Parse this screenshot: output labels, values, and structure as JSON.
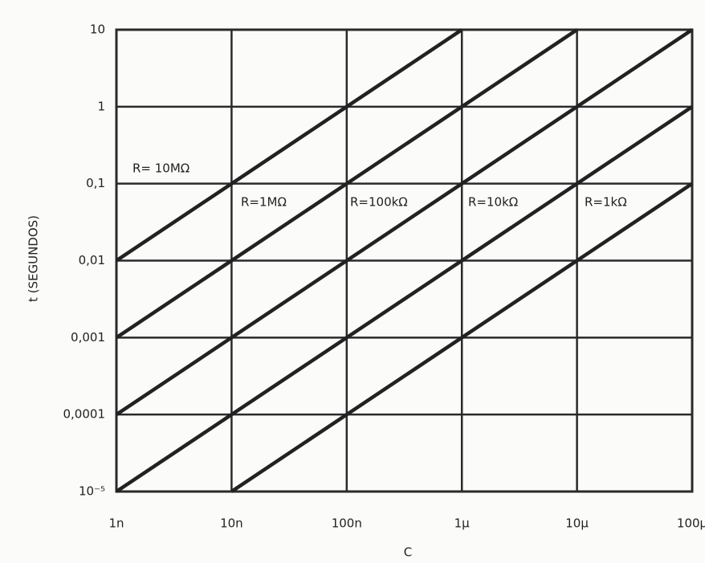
{
  "chart_data": {
    "type": "line",
    "xlabel": "C",
    "ylabel": "t (SEGUNDOS)",
    "xlog": true,
    "ylog": true,
    "grid": true,
    "xlim": [
      1e-09,
      0.0001
    ],
    "ylim": [
      1e-05,
      10
    ],
    "xticks": [
      {
        "value": 1e-09,
        "label": "1n"
      },
      {
        "value": 1e-08,
        "label": "10n"
      },
      {
        "value": 1e-07,
        "label": "100n"
      },
      {
        "value": 1e-06,
        "label": "1μ"
      },
      {
        "value": 1e-05,
        "label": "10μ"
      },
      {
        "value": 0.0001,
        "label": "100μ"
      }
    ],
    "yticks": [
      {
        "value": 1e-05,
        "label": "10⁻⁵"
      },
      {
        "value": 0.0001,
        "label": "0,0001"
      },
      {
        "value": 0.001,
        "label": "0,001"
      },
      {
        "value": 0.01,
        "label": "0,01"
      },
      {
        "value": 0.1,
        "label": "0,1"
      },
      1,
      10
    ],
    "series": [
      {
        "name": "R= 10MΩ",
        "color": "#222222",
        "x": [
          1e-09,
          1e-06
        ],
        "values": [
          0.01,
          10
        ]
      },
      {
        "name": "R=1MΩ",
        "color": "#222222",
        "x": [
          1e-09,
          1e-05
        ],
        "values": [
          0.001,
          10
        ]
      },
      {
        "name": "R=100kΩ",
        "color": "#222222",
        "x": [
          1e-09,
          0.0001
        ],
        "values": [
          0.0001,
          10
        ]
      },
      {
        "name": "R=10kΩ",
        "color": "#222222",
        "x": [
          1e-09,
          0.0001
        ],
        "values": [
          1e-05,
          1
        ]
      },
      {
        "name": "R=1kΩ",
        "color": "#222222",
        "x": [
          1e-08,
          0.0001
        ],
        "values": [
          1e-05,
          0.1
        ]
      }
    ]
  }
}
